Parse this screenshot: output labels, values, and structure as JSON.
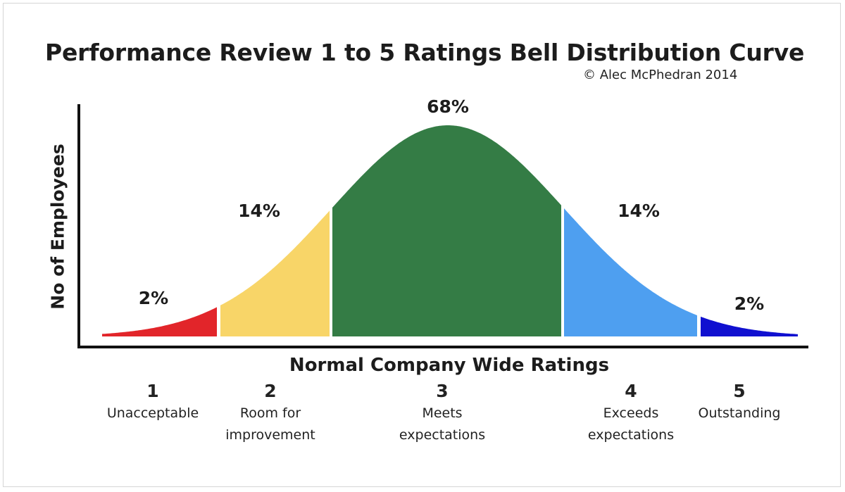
{
  "chart_data": {
    "type": "area",
    "title": "Performance Review 1 to 5 Ratings Bell Distribution Curve",
    "subtitle": "© Alec McPhedran 2014",
    "xlabel": "Normal Company Wide Ratings",
    "ylabel": "No of Employees",
    "categories": [
      {
        "rating": "1",
        "description": "Unacceptable",
        "percent": "2%",
        "value": 2,
        "color": "#e2252a"
      },
      {
        "rating": "2",
        "description": "Room for\nimprovement",
        "percent": "14%",
        "value": 14,
        "color": "#f8d568"
      },
      {
        "rating": "3",
        "description": "Meets\nexpectations",
        "percent": "68%",
        "value": 68,
        "color": "#347c45"
      },
      {
        "rating": "4",
        "description": "Exceeds\nexpectations",
        "percent": "14%",
        "value": 14,
        "color": "#4e9ff0"
      },
      {
        "rating": "5",
        "description": "Outstanding",
        "percent": "2%",
        "value": 2,
        "color": "#1010d0"
      }
    ],
    "grid": false,
    "legend": "none"
  }
}
